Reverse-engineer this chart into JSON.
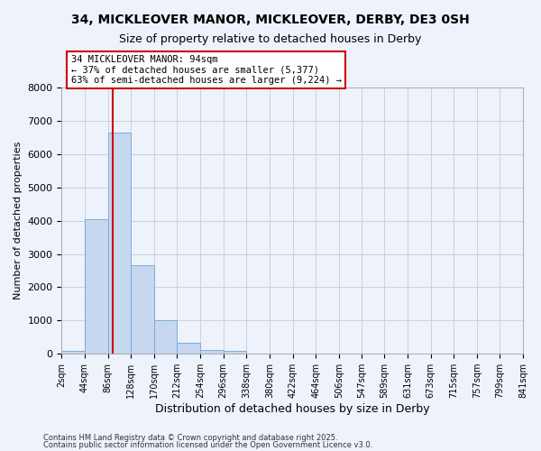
{
  "title": "34, MICKLEOVER MANOR, MICKLEOVER, DERBY, DE3 0SH",
  "subtitle": "Size of property relative to detached houses in Derby",
  "xlabel": "Distribution of detached houses by size in Derby",
  "ylabel": "Number of detached properties",
  "bin_edges": [
    2,
    44,
    86,
    128,
    170,
    212,
    254,
    296,
    338,
    380,
    422,
    464,
    506,
    547,
    589,
    631,
    673,
    715,
    757,
    799,
    841
  ],
  "bar_heights": [
    75,
    4050,
    6650,
    2650,
    1000,
    325,
    110,
    75,
    10,
    5,
    2,
    1,
    0,
    0,
    0,
    0,
    0,
    0,
    0,
    0
  ],
  "bar_color": "#c5d8f0",
  "bar_edgecolor": "#7aadda",
  "grid_color": "#c8d0e0",
  "background_color": "#eef2fa",
  "vline_x": 94,
  "vline_color": "#cc0000",
  "annotation_text": "34 MICKLEOVER MANOR: 94sqm\n← 37% of detached houses are smaller (5,377)\n63% of semi-detached houses are larger (9,224) →",
  "annotation_box_color": "#ffffff",
  "annotation_box_edgecolor": "#cc0000",
  "ylim": [
    0,
    8000
  ],
  "yticks": [
    0,
    1000,
    2000,
    3000,
    4000,
    5000,
    6000,
    7000,
    8000
  ],
  "footnote1": "Contains HM Land Registry data © Crown copyright and database right 2025.",
  "footnote2": "Contains public sector information licensed under the Open Government Licence v3.0."
}
